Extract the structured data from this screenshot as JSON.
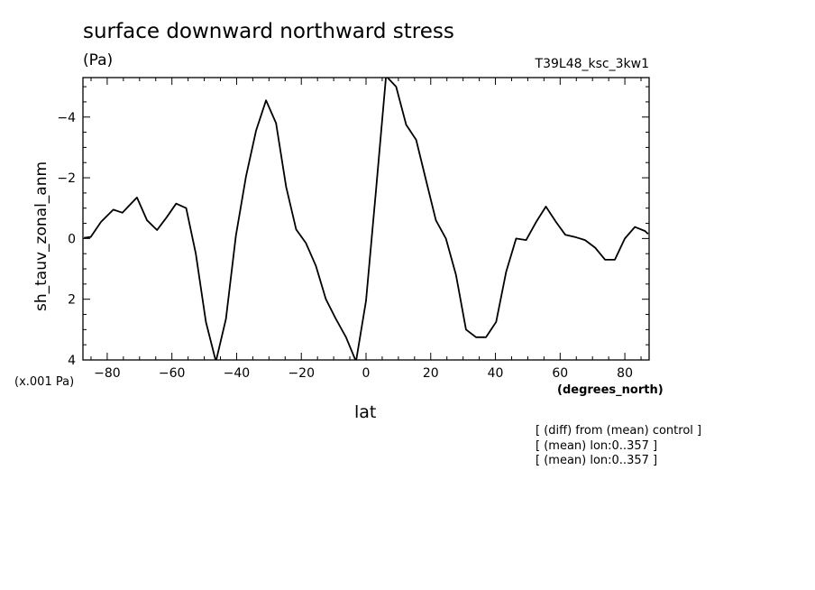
{
  "chart_data": {
    "type": "line",
    "title": "surface downward northward stress",
    "subtitle": "(Pa)",
    "run_id": "T39L48_ksc_3kw1",
    "ylabel": "sh_tauv_zonal_anm",
    "xlabel": "lat",
    "x_units": "(degrees_north)",
    "y_scale_note": "(x.001 Pa)",
    "notes": [
      "[ (diff) from (mean) control ]",
      "[ (mean) lon:0..357 ]",
      "[ (mean) lon:0..357 ]"
    ],
    "xlim": [
      -87.5,
      87.5
    ],
    "ylim": [
      4,
      -5.3
    ],
    "y_axis_inverted": true,
    "x_ticks": [
      -80,
      -60,
      -40,
      -20,
      0,
      20,
      40,
      60,
      80
    ],
    "x_tick_labels": [
      "−80",
      "−60",
      "−40",
      "−20",
      "0",
      "20",
      "40",
      "60",
      "80"
    ],
    "y_ticks": [
      -4,
      -2,
      0,
      2,
      4
    ],
    "y_tick_labels": [
      "−4",
      "−2",
      "0",
      "2",
      "4"
    ],
    "series": [
      {
        "x": [
          -87.2,
          -85.1,
          -81.9,
          -78.1,
          -75.3,
          -70.8,
          -67.7,
          -64.6,
          -61.6,
          -58.7,
          -55.6,
          -52.6,
          -49.5,
          -46.4,
          -43.3,
          -40.2,
          -37.1,
          -34.0,
          -30.9,
          -27.8,
          -24.7,
          -21.6,
          -18.6,
          -15.5,
          -12.4,
          -9.3,
          -6.2,
          -3.1,
          0.0,
          3.1,
          6.2,
          9.3,
          12.4,
          15.5,
          18.6,
          21.6,
          24.7,
          27.8,
          30.9,
          34.0,
          37.1,
          40.2,
          43.3,
          46.4,
          49.5,
          52.6,
          55.6,
          58.7,
          61.6,
          64.6,
          67.7,
          70.8,
          73.9,
          76.9,
          80.0,
          83.1,
          86.2,
          87.2
        ],
        "y": [
          -0.02,
          -0.05,
          -0.55,
          -0.95,
          -0.85,
          -1.35,
          -0.6,
          -0.28,
          -0.7,
          -1.15,
          -1.0,
          0.5,
          2.75,
          4.05,
          2.65,
          -0.1,
          -2.05,
          -3.55,
          -4.55,
          -3.8,
          -1.7,
          -0.3,
          0.15,
          0.9,
          2.0,
          2.65,
          3.25,
          4.05,
          2.05,
          -1.6,
          -5.35,
          -5.0,
          -3.75,
          -3.25,
          -1.9,
          -0.6,
          0.0,
          1.2,
          3.0,
          3.25,
          3.25,
          2.75,
          1.1,
          0.0,
          0.05,
          -0.55,
          -1.05,
          -0.55,
          -0.12,
          -0.05,
          0.05,
          0.3,
          0.7,
          0.7,
          0.0,
          -0.38,
          -0.25,
          -0.15
        ]
      }
    ]
  }
}
